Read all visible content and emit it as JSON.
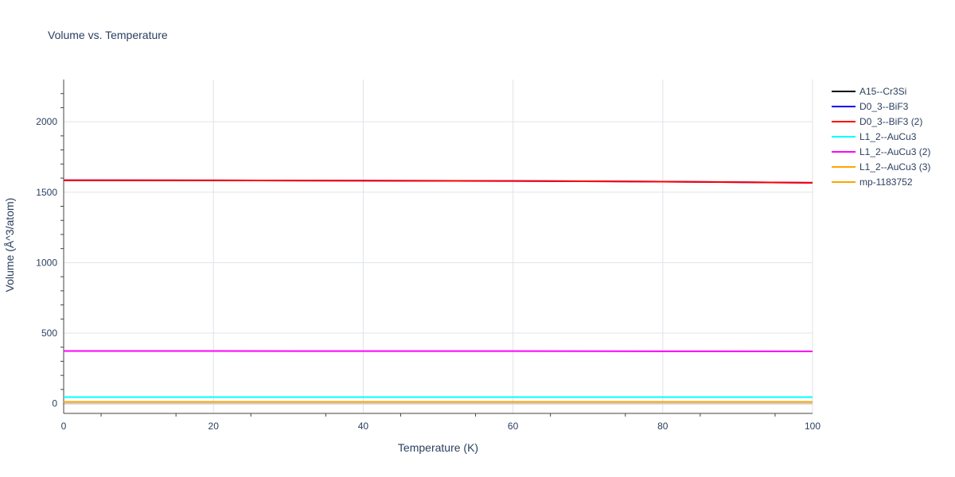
{
  "chart_data": {
    "type": "line",
    "title": "Volume vs. Temperature",
    "xlabel": "Temperature (K)",
    "ylabel": "Volume (Å^3/atom)",
    "xlim": [
      0,
      100
    ],
    "ylim": [
      -70,
      2300
    ],
    "xticks": [
      0,
      20,
      40,
      60,
      80,
      100
    ],
    "yticks": [
      0,
      500,
      1000,
      1500,
      2000
    ],
    "grid": true,
    "legend_position": "top-right",
    "series": [
      {
        "name": "A15--Cr3Si",
        "color": "#000000",
        "x": [
          0,
          20,
          40,
          60,
          80,
          100
        ],
        "y": [
          12,
          12,
          12,
          12,
          12,
          12
        ]
      },
      {
        "name": "D0_3--BiF3",
        "color": "#0000ff",
        "x": [
          0,
          20,
          40,
          60,
          80,
          100
        ],
        "y": [
          1585,
          1584,
          1582,
          1580,
          1575,
          1567
        ]
      },
      {
        "name": "D0_3--BiF3 (2)",
        "color": "#ff0000",
        "x": [
          0,
          20,
          40,
          60,
          80,
          100
        ],
        "y": [
          1585,
          1584,
          1582,
          1580,
          1575,
          1567
        ]
      },
      {
        "name": "L1_2--AuCu3",
        "color": "#00ffff",
        "x": [
          0,
          20,
          40,
          60,
          80,
          100
        ],
        "y": [
          46,
          46,
          46,
          46,
          46,
          46
        ]
      },
      {
        "name": "L1_2--AuCu3 (2)",
        "color": "#ff00ff",
        "x": [
          0,
          20,
          40,
          60,
          80,
          100
        ],
        "y": [
          373,
          373,
          372,
          372,
          371,
          370
        ]
      },
      {
        "name": "L1_2--AuCu3 (3)",
        "color": "#ffa500",
        "x": [
          0,
          20,
          40,
          60,
          80,
          100
        ],
        "y": [
          12,
          12,
          12,
          12,
          12,
          12
        ]
      },
      {
        "name": "mp-1183752",
        "color": "#ffa500",
        "x": [
          0,
          20,
          40,
          60,
          80,
          100
        ],
        "y": [
          12,
          12,
          12,
          12,
          12,
          12
        ]
      }
    ]
  }
}
